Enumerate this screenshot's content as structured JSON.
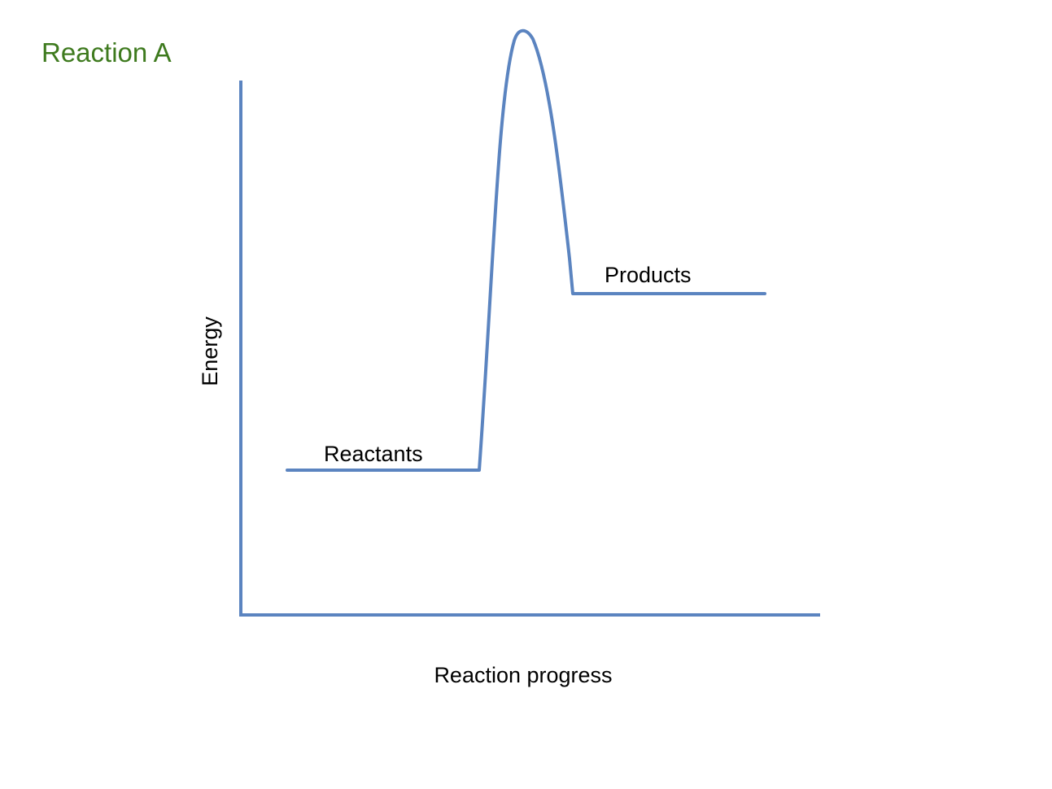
{
  "title": "Reaction A",
  "y_axis_label": "Energy",
  "x_axis_label": "Reaction progress",
  "levels": {
    "reactants_label": "Reactants",
    "products_label": "Products"
  },
  "colors": {
    "title": "#3e7a1e",
    "curve": "#5b84c0",
    "axis": "#5b84c0",
    "text": "#000000",
    "background": "#ffffff"
  }
}
